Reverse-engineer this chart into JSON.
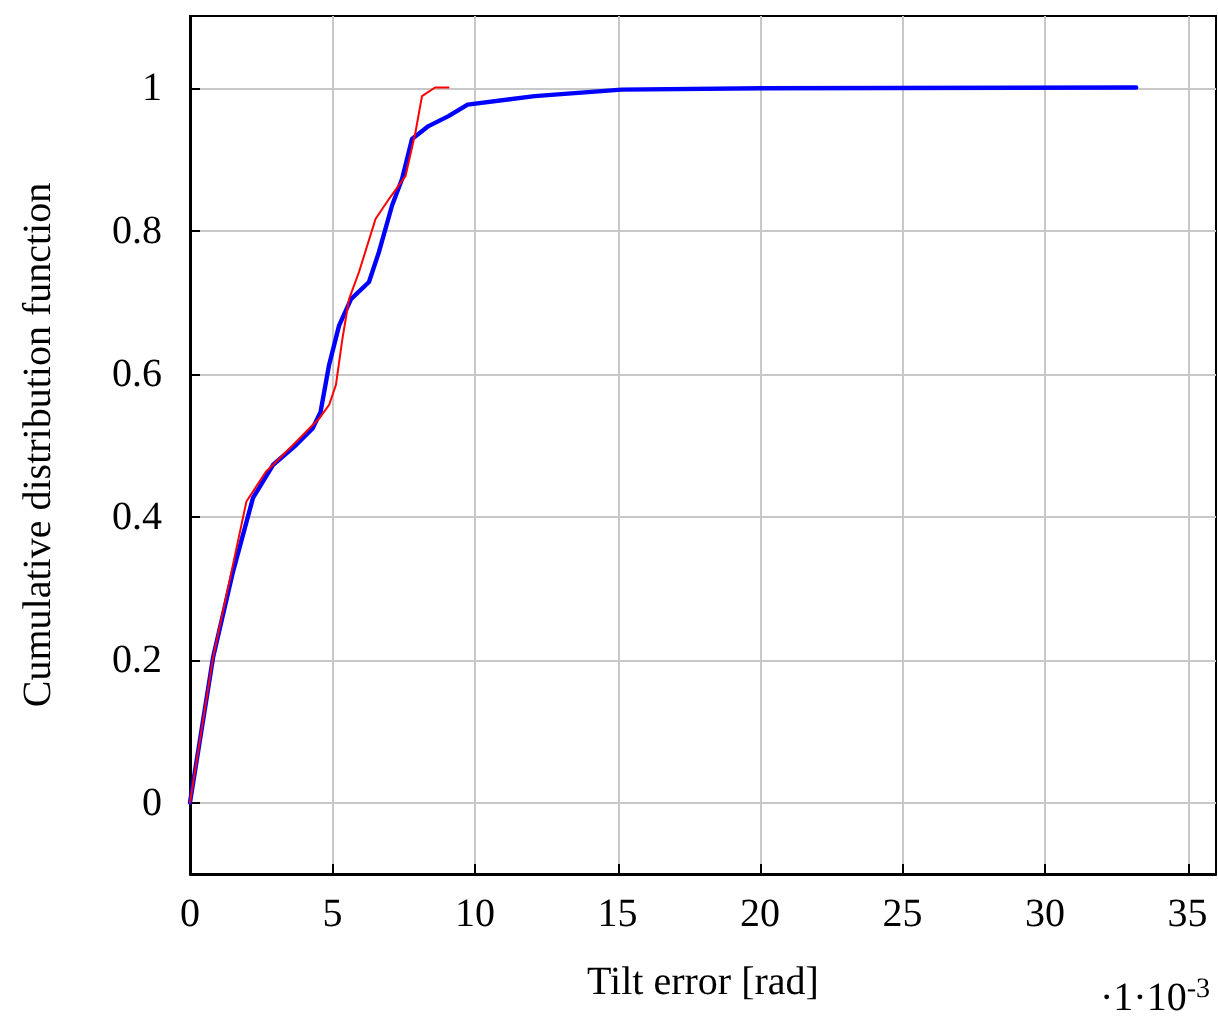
{
  "chart_data": {
    "type": "line",
    "xlabel": "Tilt error [rad]",
    "ylabel": "Cumulative distribution function",
    "annotations": [
      "·1·10$^{-3}$"
    ],
    "xlim": [
      0,
      36
    ],
    "xticks": [
      0,
      5,
      10,
      15,
      20,
      25,
      30,
      35
    ],
    "ylim": [
      -0.1,
      1.1
    ],
    "yticks": [
      0,
      0.2,
      0.4,
      0.6,
      0.8,
      1
    ],
    "grid": true,
    "marker": "none",
    "line_style": "solid",
    "series": [
      {
        "color": "#0000ff",
        "x": [
          0,
          0.81,
          1.51,
          2.21,
          2.91,
          3.72,
          4.3,
          4.58,
          4.88,
          5.23,
          5.65,
          6.28,
          6.63,
          7.09,
          7.44,
          7.79,
          8.37,
          9.07,
          9.74,
          12.09,
          15.14,
          20.07,
          33.2
        ],
        "values": [
          0,
          0.203,
          0.323,
          0.426,
          0.472,
          0.5,
          0.523,
          0.546,
          0.612,
          0.667,
          0.704,
          0.728,
          0.77,
          0.835,
          0.872,
          0.928,
          0.946,
          0.96,
          0.976,
          0.988,
          0.997,
          0.999,
          1.0
        ]
      },
      {
        "color": "#ff0000",
        "x": [
          0,
          0.81,
          1.51,
          1.98,
          2.67,
          3.14,
          3.84,
          4.53,
          4.88,
          5.12,
          5.35,
          5.58,
          5.93,
          6.51,
          6.98,
          7.56,
          7.91,
          8.14,
          8.6,
          9.07
        ],
        "values": [
          0,
          0.203,
          0.333,
          0.421,
          0.463,
          0.481,
          0.509,
          0.537,
          0.556,
          0.584,
          0.649,
          0.704,
          0.742,
          0.816,
          0.844,
          0.876,
          0.937,
          0.988,
          1.0,
          1.0
        ]
      }
    ]
  }
}
